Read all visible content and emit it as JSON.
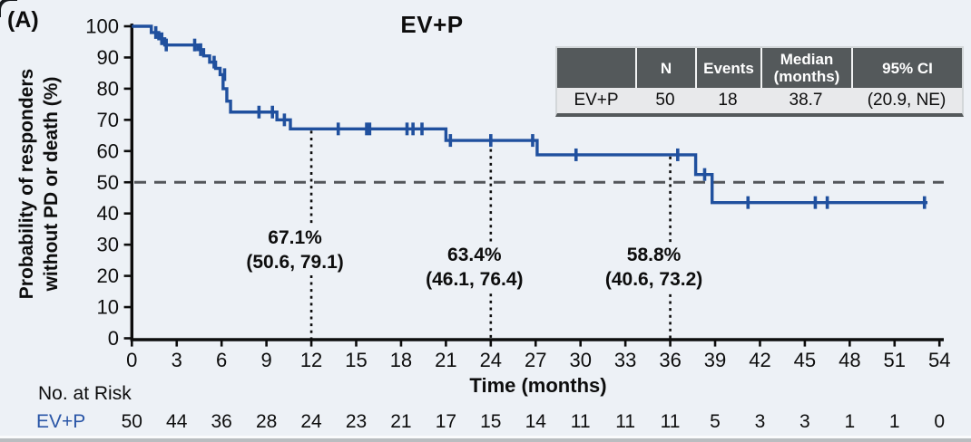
{
  "panel_label": "(A)",
  "colors": {
    "background": "#edf1f6",
    "curve": "#20509e",
    "risk_text": "#2a56a7",
    "dashed_line": "#53565a",
    "dotted_line": "#0d0d0d",
    "axis": "#0d0d0d",
    "table_header_bg": "#54595b",
    "table_header_text": "#ffffff",
    "table_row_bg": "#e8e9eb"
  },
  "summary_table": {
    "columns": [
      "",
      "N",
      "Events",
      "Median (months)",
      "95% CI"
    ],
    "rows": [
      {
        "label": "EV+P",
        "n": "50",
        "events": "18",
        "median": "38.7",
        "ci": "(20.9, NE)"
      }
    ]
  },
  "chart_data": {
    "type": "line",
    "subtype": "kaplan-meier-step",
    "title": "EV+P",
    "xlabel": "Time (months)",
    "ylabel_line1": "Probability of responders",
    "ylabel_line2": "without PD or death (%)",
    "xlim": [
      0,
      54
    ],
    "ylim": [
      0,
      100
    ],
    "xticks": [
      0,
      3,
      6,
      9,
      12,
      15,
      18,
      21,
      24,
      27,
      30,
      33,
      36,
      39,
      42,
      45,
      48,
      51,
      54
    ],
    "yticks": [
      0,
      10,
      20,
      30,
      40,
      50,
      60,
      70,
      80,
      90,
      100
    ],
    "grid": false,
    "reference_line_y": 50,
    "series_name": "EV+P",
    "steps": [
      [
        0,
        100
      ],
      [
        1.3,
        98
      ],
      [
        1.8,
        96
      ],
      [
        2.2,
        94
      ],
      [
        4.4,
        92.5
      ],
      [
        4.8,
        90.5
      ],
      [
        5.2,
        88.5
      ],
      [
        5.6,
        86.5
      ],
      [
        5.9,
        84.5
      ],
      [
        6.1,
        80
      ],
      [
        6.35,
        76
      ],
      [
        6.6,
        72.5
      ],
      [
        9.7,
        70
      ],
      [
        10.6,
        67.1
      ],
      [
        21,
        63.4
      ],
      [
        27.1,
        58.8
      ],
      [
        37.7,
        52.5
      ],
      [
        38.8,
        43.5
      ]
    ],
    "curve_end_x": 53.2,
    "censor_marks": [
      [
        1.6,
        98
      ],
      [
        2.0,
        96
      ],
      [
        2.3,
        94
      ],
      [
        4.2,
        94
      ],
      [
        4.6,
        92.5
      ],
      [
        5.5,
        88.5
      ],
      [
        6.2,
        84.5
      ],
      [
        8.5,
        72.5
      ],
      [
        9.4,
        72.5
      ],
      [
        10.2,
        70
      ],
      [
        13.8,
        67.1
      ],
      [
        15.7,
        67.1
      ],
      [
        15.9,
        67.1
      ],
      [
        18.4,
        67.1
      ],
      [
        18.8,
        67.1
      ],
      [
        19.4,
        67.1
      ],
      [
        21.3,
        63.4
      ],
      [
        24.0,
        63.4
      ],
      [
        26.8,
        63.4
      ],
      [
        29.7,
        58.8
      ],
      [
        36.5,
        58.8
      ],
      [
        38.3,
        52.5
      ],
      [
        41.2,
        43.5
      ],
      [
        45.7,
        43.5
      ],
      [
        46.5,
        43.5
      ],
      [
        53.0,
        43.5
      ]
    ],
    "milestones": [
      {
        "x": 12,
        "value": "67.1%",
        "ci": "(50.6, 79.1)"
      },
      {
        "x": 24,
        "value": "63.4%",
        "ci": "(46.1, 76.4)"
      },
      {
        "x": 36,
        "value": "58.8%",
        "ci": "(40.6, 73.2)"
      }
    ]
  },
  "risk_table": {
    "heading": "No. at Risk",
    "row_label": "EV+P",
    "times": [
      0,
      3,
      6,
      9,
      12,
      15,
      18,
      21,
      24,
      27,
      30,
      33,
      36,
      39,
      42,
      45,
      48,
      51,
      54
    ],
    "counts": [
      50,
      44,
      36,
      28,
      24,
      23,
      21,
      17,
      15,
      14,
      11,
      11,
      11,
      5,
      3,
      3,
      1,
      1,
      0
    ]
  }
}
